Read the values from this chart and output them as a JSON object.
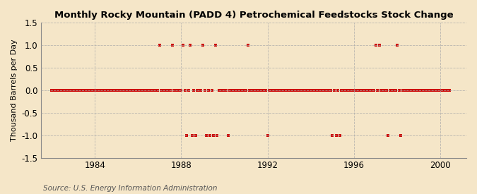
{
  "title": "Monthly Rocky Mountain (PADD 4) Petrochemical Feedstocks Stock Change",
  "ylabel": "Thousand Barrels per Day",
  "source": "Source: U.S. Energy Information Administration",
  "background_color": "#f5e6c8",
  "line_color": "#cc0000",
  "marker": "s",
  "markersize": 3.0,
  "xlim": [
    1981.5,
    2001.2
  ],
  "ylim": [
    -1.5,
    1.5
  ],
  "yticks": [
    -1.5,
    -1.0,
    -0.5,
    0.0,
    0.5,
    1.0,
    1.5
  ],
  "xticks": [
    1984,
    1988,
    1992,
    1996,
    2000
  ],
  "grid_color": "#aaaaaa",
  "grid_style": "--",
  "data_points": [
    [
      1982.0,
      0
    ],
    [
      1982.083,
      0
    ],
    [
      1982.167,
      0
    ],
    [
      1982.25,
      0
    ],
    [
      1982.333,
      0
    ],
    [
      1982.417,
      0
    ],
    [
      1982.5,
      0
    ],
    [
      1982.583,
      0
    ],
    [
      1982.667,
      0
    ],
    [
      1982.75,
      0
    ],
    [
      1982.833,
      0
    ],
    [
      1982.917,
      0
    ],
    [
      1983.0,
      0
    ],
    [
      1983.083,
      0
    ],
    [
      1983.167,
      0
    ],
    [
      1983.25,
      0
    ],
    [
      1983.333,
      0
    ],
    [
      1983.417,
      0
    ],
    [
      1983.5,
      0
    ],
    [
      1983.583,
      0
    ],
    [
      1983.667,
      0
    ],
    [
      1983.75,
      0
    ],
    [
      1983.833,
      0
    ],
    [
      1983.917,
      0
    ],
    [
      1984.0,
      0
    ],
    [
      1984.083,
      0
    ],
    [
      1984.167,
      0
    ],
    [
      1984.25,
      0
    ],
    [
      1984.333,
      0
    ],
    [
      1984.417,
      0
    ],
    [
      1984.5,
      0
    ],
    [
      1984.583,
      0
    ],
    [
      1984.667,
      0
    ],
    [
      1984.75,
      0
    ],
    [
      1984.833,
      0
    ],
    [
      1984.917,
      0
    ],
    [
      1985.0,
      0
    ],
    [
      1985.083,
      0
    ],
    [
      1985.167,
      0
    ],
    [
      1985.25,
      0
    ],
    [
      1985.333,
      0
    ],
    [
      1985.417,
      0
    ],
    [
      1985.5,
      0
    ],
    [
      1985.583,
      0
    ],
    [
      1985.667,
      0
    ],
    [
      1985.75,
      0
    ],
    [
      1985.833,
      0
    ],
    [
      1985.917,
      0
    ],
    [
      1986.0,
      0
    ],
    [
      1986.083,
      0
    ],
    [
      1986.167,
      0
    ],
    [
      1986.25,
      0
    ],
    [
      1986.333,
      0
    ],
    [
      1986.417,
      0
    ],
    [
      1986.5,
      0
    ],
    [
      1986.583,
      0
    ],
    [
      1986.667,
      0
    ],
    [
      1986.75,
      0
    ],
    [
      1986.833,
      0
    ],
    [
      1986.917,
      0
    ],
    [
      1987.0,
      1
    ],
    [
      1987.083,
      0
    ],
    [
      1987.167,
      0
    ],
    [
      1987.25,
      0
    ],
    [
      1987.333,
      0
    ],
    [
      1987.417,
      0
    ],
    [
      1987.5,
      0
    ],
    [
      1987.583,
      1
    ],
    [
      1987.667,
      0
    ],
    [
      1987.75,
      0
    ],
    [
      1987.833,
      0
    ],
    [
      1987.917,
      0
    ],
    [
      1988.0,
      0
    ],
    [
      1988.083,
      1
    ],
    [
      1988.167,
      0
    ],
    [
      1988.25,
      -1
    ],
    [
      1988.333,
      0
    ],
    [
      1988.417,
      1
    ],
    [
      1988.5,
      -1
    ],
    [
      1988.583,
      0
    ],
    [
      1988.667,
      -1
    ],
    [
      1988.75,
      0
    ],
    [
      1988.833,
      0
    ],
    [
      1988.917,
      0
    ],
    [
      1989.0,
      1
    ],
    [
      1989.083,
      0
    ],
    [
      1989.167,
      -1
    ],
    [
      1989.25,
      0
    ],
    [
      1989.333,
      -1
    ],
    [
      1989.417,
      0
    ],
    [
      1989.5,
      -1
    ],
    [
      1989.583,
      1
    ],
    [
      1989.667,
      -1
    ],
    [
      1989.75,
      0
    ],
    [
      1989.833,
      0
    ],
    [
      1989.917,
      0
    ],
    [
      1990.0,
      0
    ],
    [
      1990.083,
      0
    ],
    [
      1990.167,
      -1
    ],
    [
      1990.25,
      0
    ],
    [
      1990.333,
      0
    ],
    [
      1990.417,
      0
    ],
    [
      1990.5,
      0
    ],
    [
      1990.583,
      0
    ],
    [
      1990.667,
      0
    ],
    [
      1990.75,
      0
    ],
    [
      1990.833,
      0
    ],
    [
      1990.917,
      0
    ],
    [
      1991.0,
      0
    ],
    [
      1991.083,
      1
    ],
    [
      1991.167,
      0
    ],
    [
      1991.25,
      0
    ],
    [
      1991.333,
      0
    ],
    [
      1991.417,
      0
    ],
    [
      1991.5,
      0
    ],
    [
      1991.583,
      0
    ],
    [
      1991.667,
      0
    ],
    [
      1991.75,
      0
    ],
    [
      1991.833,
      0
    ],
    [
      1991.917,
      0
    ],
    [
      1992.0,
      -1
    ],
    [
      1992.083,
      0
    ],
    [
      1992.167,
      0
    ],
    [
      1992.25,
      0
    ],
    [
      1992.333,
      0
    ],
    [
      1992.417,
      0
    ],
    [
      1992.5,
      0
    ],
    [
      1992.583,
      0
    ],
    [
      1992.667,
      0
    ],
    [
      1992.75,
      0
    ],
    [
      1992.833,
      0
    ],
    [
      1992.917,
      0
    ],
    [
      1993.0,
      0
    ],
    [
      1993.083,
      0
    ],
    [
      1993.167,
      0
    ],
    [
      1993.25,
      0
    ],
    [
      1993.333,
      0
    ],
    [
      1993.417,
      0
    ],
    [
      1993.5,
      0
    ],
    [
      1993.583,
      0
    ],
    [
      1993.667,
      0
    ],
    [
      1993.75,
      0
    ],
    [
      1993.833,
      0
    ],
    [
      1993.917,
      0
    ],
    [
      1994.0,
      0
    ],
    [
      1994.083,
      0
    ],
    [
      1994.167,
      0
    ],
    [
      1994.25,
      0
    ],
    [
      1994.333,
      0
    ],
    [
      1994.417,
      0
    ],
    [
      1994.5,
      0
    ],
    [
      1994.583,
      0
    ],
    [
      1994.667,
      0
    ],
    [
      1994.75,
      0
    ],
    [
      1994.833,
      0
    ],
    [
      1994.917,
      0
    ],
    [
      1995.0,
      -1
    ],
    [
      1995.083,
      0
    ],
    [
      1995.167,
      -1
    ],
    [
      1995.25,
      0
    ],
    [
      1995.333,
      -1
    ],
    [
      1995.417,
      0
    ],
    [
      1995.5,
      0
    ],
    [
      1995.583,
      0
    ],
    [
      1995.667,
      0
    ],
    [
      1995.75,
      0
    ],
    [
      1995.833,
      0
    ],
    [
      1995.917,
      0
    ],
    [
      1996.0,
      0
    ],
    [
      1996.083,
      0
    ],
    [
      1996.167,
      0
    ],
    [
      1996.25,
      0
    ],
    [
      1996.333,
      0
    ],
    [
      1996.417,
      0
    ],
    [
      1996.5,
      0
    ],
    [
      1996.583,
      0
    ],
    [
      1996.667,
      0
    ],
    [
      1996.75,
      0
    ],
    [
      1996.833,
      0
    ],
    [
      1996.917,
      0
    ],
    [
      1997.0,
      1
    ],
    [
      1997.083,
      0
    ],
    [
      1997.167,
      1
    ],
    [
      1997.25,
      0
    ],
    [
      1997.333,
      0
    ],
    [
      1997.417,
      0
    ],
    [
      1997.5,
      0
    ],
    [
      1997.583,
      -1
    ],
    [
      1997.667,
      0
    ],
    [
      1997.75,
      0
    ],
    [
      1997.833,
      0
    ],
    [
      1997.917,
      0
    ],
    [
      1998.0,
      1
    ],
    [
      1998.083,
      0
    ],
    [
      1998.167,
      -1
    ],
    [
      1998.25,
      0
    ],
    [
      1998.333,
      0
    ],
    [
      1998.417,
      0
    ],
    [
      1998.5,
      0
    ],
    [
      1998.583,
      0
    ],
    [
      1998.667,
      0
    ],
    [
      1998.75,
      0
    ],
    [
      1998.833,
      0
    ],
    [
      1998.917,
      0
    ],
    [
      1999.0,
      0
    ],
    [
      1999.083,
      0
    ],
    [
      1999.167,
      0
    ],
    [
      1999.25,
      0
    ],
    [
      1999.333,
      0
    ],
    [
      1999.417,
      0
    ],
    [
      1999.5,
      0
    ],
    [
      1999.583,
      0
    ],
    [
      1999.667,
      0
    ],
    [
      1999.75,
      0
    ],
    [
      1999.833,
      0
    ],
    [
      1999.917,
      0
    ],
    [
      2000.0,
      0
    ],
    [
      2000.083,
      0
    ],
    [
      2000.167,
      0
    ],
    [
      2000.25,
      0
    ],
    [
      2000.333,
      0
    ],
    [
      2000.417,
      0
    ]
  ]
}
